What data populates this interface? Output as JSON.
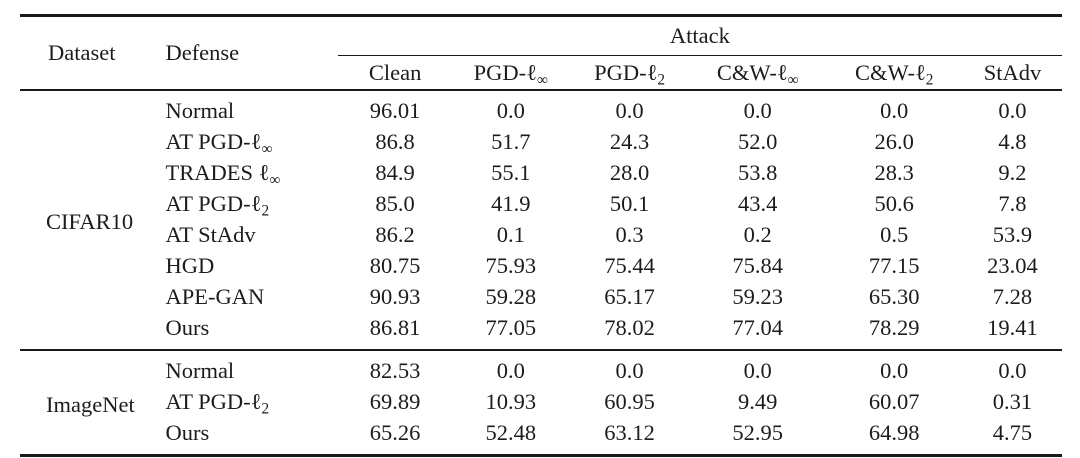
{
  "table": {
    "col_headers": {
      "dataset": "Dataset",
      "defense": "Defense",
      "attack": "Attack"
    },
    "attack_columns": [
      {
        "text": "Clean"
      },
      {
        "text": "PGD-ℓ",
        "sub": "∞"
      },
      {
        "text": "PGD-ℓ",
        "sub": "2"
      },
      {
        "text": "C&W-ℓ",
        "sub": "∞"
      },
      {
        "text": "C&W-ℓ",
        "sub": "2"
      },
      {
        "text": "StAdv"
      }
    ],
    "groups": [
      {
        "dataset": "CIFAR10",
        "rows": [
          {
            "defense": {
              "text": "Normal"
            },
            "values": [
              "96.01",
              "0.0",
              "0.0",
              "0.0",
              "0.0",
              "0.0"
            ]
          },
          {
            "defense": {
              "text": "AT PGD-ℓ",
              "sub": "∞"
            },
            "values": [
              "86.8",
              "51.7",
              "24.3",
              "52.0",
              "26.0",
              "4.8"
            ]
          },
          {
            "defense": {
              "text": "TRADES ℓ",
              "sub": "∞"
            },
            "values": [
              "84.9",
              "55.1",
              "28.0",
              "53.8",
              "28.3",
              "9.2"
            ]
          },
          {
            "defense": {
              "text": "AT PGD-ℓ",
              "sub": "2"
            },
            "values": [
              "85.0",
              "41.9",
              "50.1",
              "43.4",
              "50.6",
              "7.8"
            ]
          },
          {
            "defense": {
              "text": "AT StAdv"
            },
            "values": [
              "86.2",
              "0.1",
              "0.3",
              "0.2",
              "0.5",
              "53.9"
            ]
          },
          {
            "defense": {
              "text": "HGD"
            },
            "values": [
              "80.75",
              "75.93",
              "75.44",
              "75.84",
              "77.15",
              "23.04"
            ]
          },
          {
            "defense": {
              "text": "APE-GAN"
            },
            "values": [
              "90.93",
              "59.28",
              "65.17",
              "59.23",
              "65.30",
              "7.28"
            ]
          },
          {
            "defense": {
              "text": "Ours"
            },
            "values": [
              "86.81",
              "77.05",
              "78.02",
              "77.04",
              "78.29",
              "19.41"
            ]
          }
        ]
      },
      {
        "dataset": "ImageNet",
        "rows": [
          {
            "defense": {
              "text": "Normal"
            },
            "values": [
              "82.53",
              "0.0",
              "0.0",
              "0.0",
              "0.0",
              "0.0"
            ]
          },
          {
            "defense": {
              "text": "AT PGD-ℓ",
              "sub": "2"
            },
            "values": [
              "69.89",
              "10.93",
              "60.95",
              "9.49",
              "60.07",
              "0.31"
            ]
          },
          {
            "defense": {
              "text": "Ours"
            },
            "values": [
              "65.26",
              "52.48",
              "63.12",
              "52.95",
              "64.98",
              "4.75"
            ]
          }
        ]
      }
    ]
  }
}
